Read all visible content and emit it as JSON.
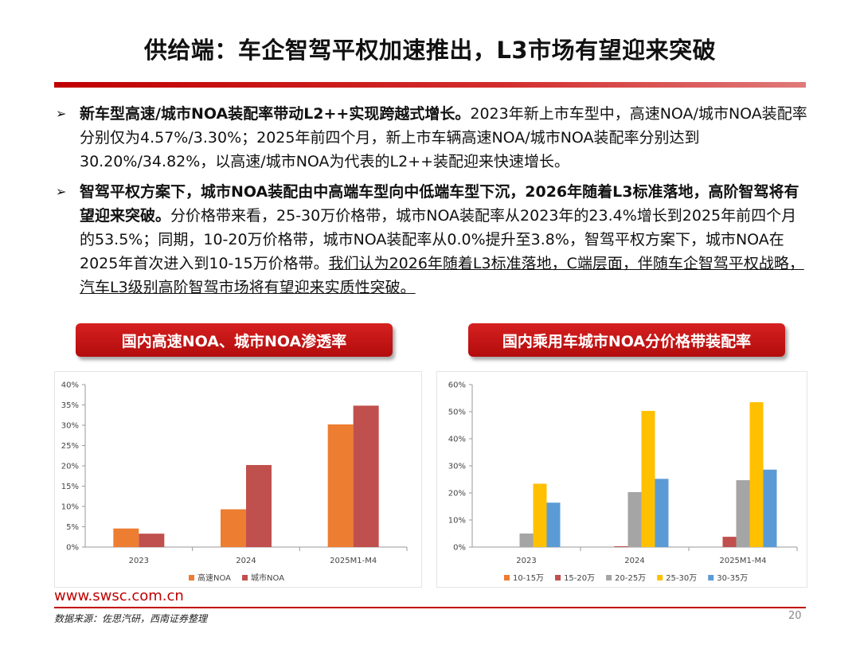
{
  "header": {
    "title": "供给端：车企智驾平权加速推出，L3市场有望迎来突破"
  },
  "paragraphs": {
    "p1": {
      "bold": "新车型高速/城市NOA装配率带动L2++实现跨越式增长。",
      "normal": "2023年新上市车型中，高速NOA/城市NOA装配率分别仅为4.57%/3.30%；2025年前四个月，新上市车辆高速NOA/城市NOA装配率分别达到30.20%/34.82%，以高速/城市NOA为代表的L2++装配迎来快速增长。"
    },
    "p2": {
      "bold": "智驾平权方案下，城市NOA装配由中高端车型向中低端车型下沉，2026年随着L3标准落地，高阶智驾将有望迎来突破。",
      "normal": "分价格带来看，25-30万价格带，城市NOA装配率从2023年的23.4%增长到2025年前四个月的53.5%；同期，10-20万价格带，城市NOA装配率从0.0%提升至3.8%，智驾平权方案下，城市NOA在2025年首次进入到10-15万价格带。",
      "underline": "我们认为2026年随着L3标准落地，C端层面，伴随车企智驾平权战略，汽车L3级别高阶智驾市场将有望迎来实质性突破。"
    },
    "bullet_symbol": "➢"
  },
  "badges": {
    "left": "国内高速NOA、城市NOA渗透率",
    "right": "国内乘用车城市NOA分价格带装配率"
  },
  "chart_data": [
    {
      "type": "bar",
      "categories": [
        "2023",
        "2024",
        "2025M1-M4"
      ],
      "series": [
        {
          "name": "高速NOA",
          "color": "#ed7d31",
          "values": [
            4.57,
            9.3,
            30.2
          ]
        },
        {
          "name": "城市NOA",
          "color": "#c0504d",
          "values": [
            3.3,
            20.2,
            34.82
          ]
        }
      ],
      "ylim": [
        0,
        40
      ],
      "yticks": [
        "0%",
        "5%",
        "10%",
        "15%",
        "20%",
        "25%",
        "30%",
        "35%",
        "40%"
      ],
      "legend": "bottom"
    },
    {
      "type": "bar",
      "categories": [
        "2023",
        "2024",
        "2025M1-M4"
      ],
      "series": [
        {
          "name": "10-15万",
          "color": "#ed7d31",
          "values": [
            0.0,
            0.0,
            0.0
          ]
        },
        {
          "name": "15-20万",
          "color": "#c0504d",
          "values": [
            0.0,
            0.3,
            3.8
          ]
        },
        {
          "name": "20-25万",
          "color": "#a5a5a5",
          "values": [
            5.0,
            20.3,
            24.7
          ]
        },
        {
          "name": "25-30万",
          "color": "#ffc000",
          "values": [
            23.4,
            50.3,
            53.5
          ]
        },
        {
          "name": "30-35万",
          "color": "#5b9bd5",
          "values": [
            16.4,
            25.2,
            28.6
          ]
        }
      ],
      "ylim": [
        0,
        60
      ],
      "yticks": [
        "0%",
        "10%",
        "20%",
        "30%",
        "40%",
        "50%",
        "60%"
      ],
      "legend": "bottom"
    }
  ],
  "footer": {
    "url": "www.swsc.com.cn",
    "source": "数据来源：佐思汽研，西南证券整理",
    "page": "20"
  }
}
